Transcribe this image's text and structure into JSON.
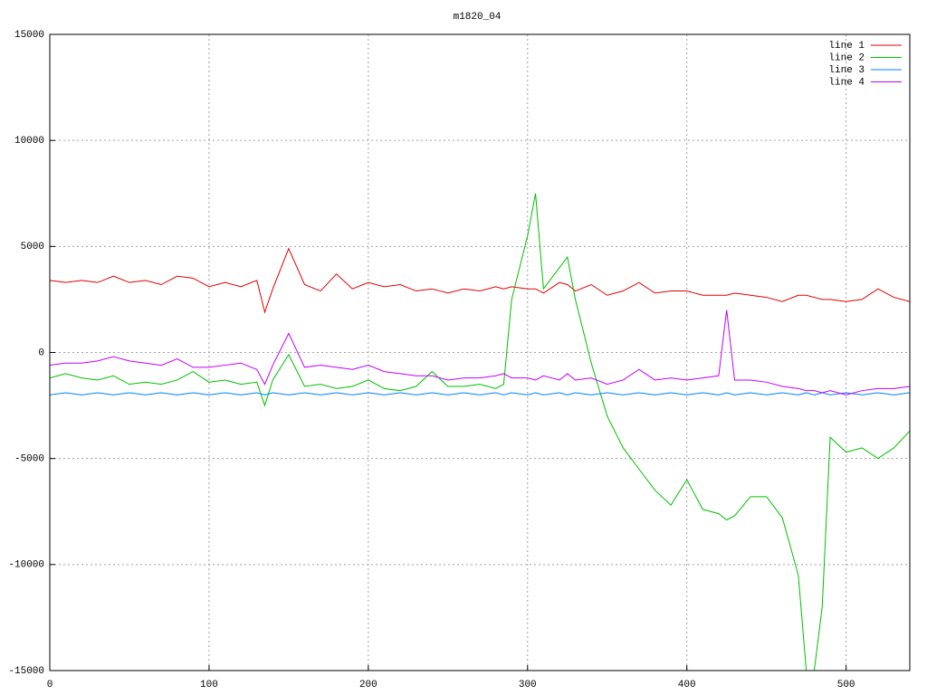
{
  "chart_data": {
    "type": "line",
    "title": "m1820_04",
    "x": [
      0,
      10,
      20,
      30,
      40,
      50,
      60,
      70,
      80,
      90,
      100,
      110,
      120,
      130,
      135,
      140,
      150,
      160,
      170,
      180,
      190,
      200,
      210,
      220,
      230,
      240,
      250,
      260,
      270,
      280,
      285,
      290,
      300,
      305,
      310,
      320,
      325,
      330,
      340,
      350,
      360,
      370,
      380,
      390,
      400,
      410,
      420,
      425,
      430,
      440,
      450,
      460,
      470,
      475,
      480,
      485,
      490,
      500,
      510,
      520,
      530,
      540
    ],
    "series": [
      {
        "name": "line 1",
        "color": "#e00000",
        "values": [
          3400,
          3300,
          3400,
          3300,
          3600,
          3300,
          3400,
          3200,
          3600,
          3500,
          3100,
          3300,
          3100,
          3400,
          1900,
          3000,
          4900,
          3200,
          2900,
          3700,
          3000,
          3300,
          3100,
          3200,
          2900,
          3000,
          2800,
          3000,
          2900,
          3100,
          3000,
          3100,
          3000,
          3000,
          2800,
          3300,
          3200,
          2900,
          3200,
          2700,
          2900,
          3300,
          2800,
          2900,
          2900,
          2700,
          2700,
          2700,
          2800,
          2700,
          2600,
          2400,
          2700,
          2700,
          2600,
          2500,
          2500,
          2400,
          2500,
          3000,
          2600,
          2400
        ]
      },
      {
        "name": "line 2",
        "color": "#00c000",
        "values": [
          -1200,
          -1000,
          -1200,
          -1300,
          -1100,
          -1500,
          -1400,
          -1500,
          -1300,
          -900,
          -1400,
          -1300,
          -1500,
          -1400,
          -2500,
          -1300,
          -100,
          -1600,
          -1500,
          -1700,
          -1600,
          -1300,
          -1700,
          -1800,
          -1600,
          -900,
          -1600,
          -1600,
          -1500,
          -1700,
          -1500,
          2500,
          5500,
          7500,
          3000,
          4000,
          4500,
          2500,
          -500,
          -3000,
          -4500,
          -5500,
          -6500,
          -7200,
          -6000,
          -7400,
          -7600,
          -7900,
          -7700,
          -6800,
          -6800,
          -7800,
          -10500,
          -15000,
          -15000,
          -12000,
          -4000,
          -4700,
          -4500,
          -5000,
          -4500,
          -3700
        ]
      },
      {
        "name": "line 3",
        "color": "#0080ff",
        "values": [
          -2000,
          -1900,
          -2000,
          -1900,
          -2000,
          -1900,
          -2000,
          -1900,
          -2000,
          -1900,
          -2000,
          -1900,
          -2000,
          -1900,
          -2000,
          -1900,
          -2000,
          -1900,
          -2000,
          -1900,
          -2000,
          -1900,
          -2000,
          -1900,
          -2000,
          -1900,
          -2000,
          -1900,
          -2000,
          -1900,
          -2000,
          -1900,
          -2000,
          -1900,
          -2000,
          -1900,
          -2000,
          -1900,
          -2000,
          -1900,
          -2000,
          -1900,
          -2000,
          -1900,
          -2000,
          -1900,
          -2000,
          -1900,
          -2000,
          -1900,
          -2000,
          -1900,
          -2000,
          -1900,
          -2000,
          -1900,
          -2000,
          -1900,
          -2000,
          -1900,
          -2000,
          -1900
        ]
      },
      {
        "name": "line 4",
        "color": "#c000ff",
        "values": [
          -600,
          -500,
          -500,
          -400,
          -200,
          -400,
          -500,
          -600,
          -300,
          -700,
          -700,
          -600,
          -500,
          -800,
          -1500,
          -600,
          900,
          -700,
          -600,
          -700,
          -800,
          -600,
          -900,
          -1000,
          -1100,
          -1100,
          -1300,
          -1200,
          -1200,
          -1100,
          -1000,
          -1200,
          -1200,
          -1300,
          -1100,
          -1300,
          -1000,
          -1300,
          -1200,
          -1500,
          -1300,
          -800,
          -1300,
          -1200,
          -1300,
          -1200,
          -1100,
          2000,
          -1300,
          -1300,
          -1400,
          -1600,
          -1700,
          -1800,
          -1800,
          -1900,
          -1800,
          -2000,
          -1800,
          -1700,
          -1700,
          -1600
        ]
      }
    ],
    "xlim": [
      0,
      540
    ],
    "ylim": [
      -15000,
      15000
    ],
    "xticks": [
      0,
      100,
      200,
      300,
      400,
      500
    ],
    "yticks": [
      -15000,
      -10000,
      -5000,
      0,
      5000,
      10000,
      15000
    ],
    "grid": true,
    "legend": "upper right"
  }
}
